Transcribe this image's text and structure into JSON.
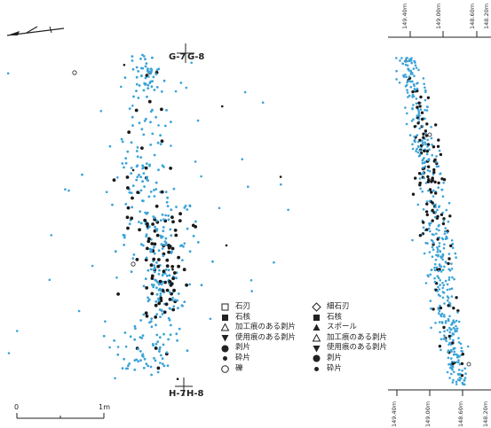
{
  "plan": {
    "grid_labels": {
      "top_left": "G-7",
      "top_right": "G-8",
      "bottom_left": "H-7",
      "bottom_right": "H-8"
    },
    "scale_bar": {
      "start_label": "0",
      "end_label": "1m"
    }
  },
  "section": {
    "top_ticks": [
      "149.40m",
      "149.00m",
      "148.60m",
      "148.20m"
    ],
    "bottom_ticks": [
      "149.40m",
      "149.00m",
      "148.60m",
      "148.20m"
    ]
  },
  "legend_left": [
    {
      "symbol": "open-square",
      "label": "石刃"
    },
    {
      "symbol": "filled-square",
      "label": "石核"
    },
    {
      "symbol": "open-triangle",
      "label": "加工痕のある剥片"
    },
    {
      "symbol": "filled-triangle-down",
      "label": "使用痕のある剥片"
    },
    {
      "symbol": "filled-circle-large",
      "label": "剥片"
    },
    {
      "symbol": "filled-circle-small",
      "label": "砕片"
    },
    {
      "symbol": "open-circle",
      "label": "礫"
    }
  ],
  "legend_right": [
    {
      "symbol": "open-diamond",
      "label": "細石刃"
    },
    {
      "symbol": "filled-square",
      "label": "石核"
    },
    {
      "symbol": "filled-triangle-up",
      "label": "スポール"
    },
    {
      "symbol": "open-triangle",
      "label": "加工痕のある剥片"
    },
    {
      "symbol": "filled-triangle-down",
      "label": "使用痕のある剥片"
    },
    {
      "symbol": "filled-circle-large",
      "label": "剥片"
    },
    {
      "symbol": "filled-circle-small",
      "label": "砕片"
    }
  ],
  "colors": {
    "blue_dot": "#3aa3d8",
    "black_dot": "#1a1a1a",
    "line": "#222222"
  }
}
